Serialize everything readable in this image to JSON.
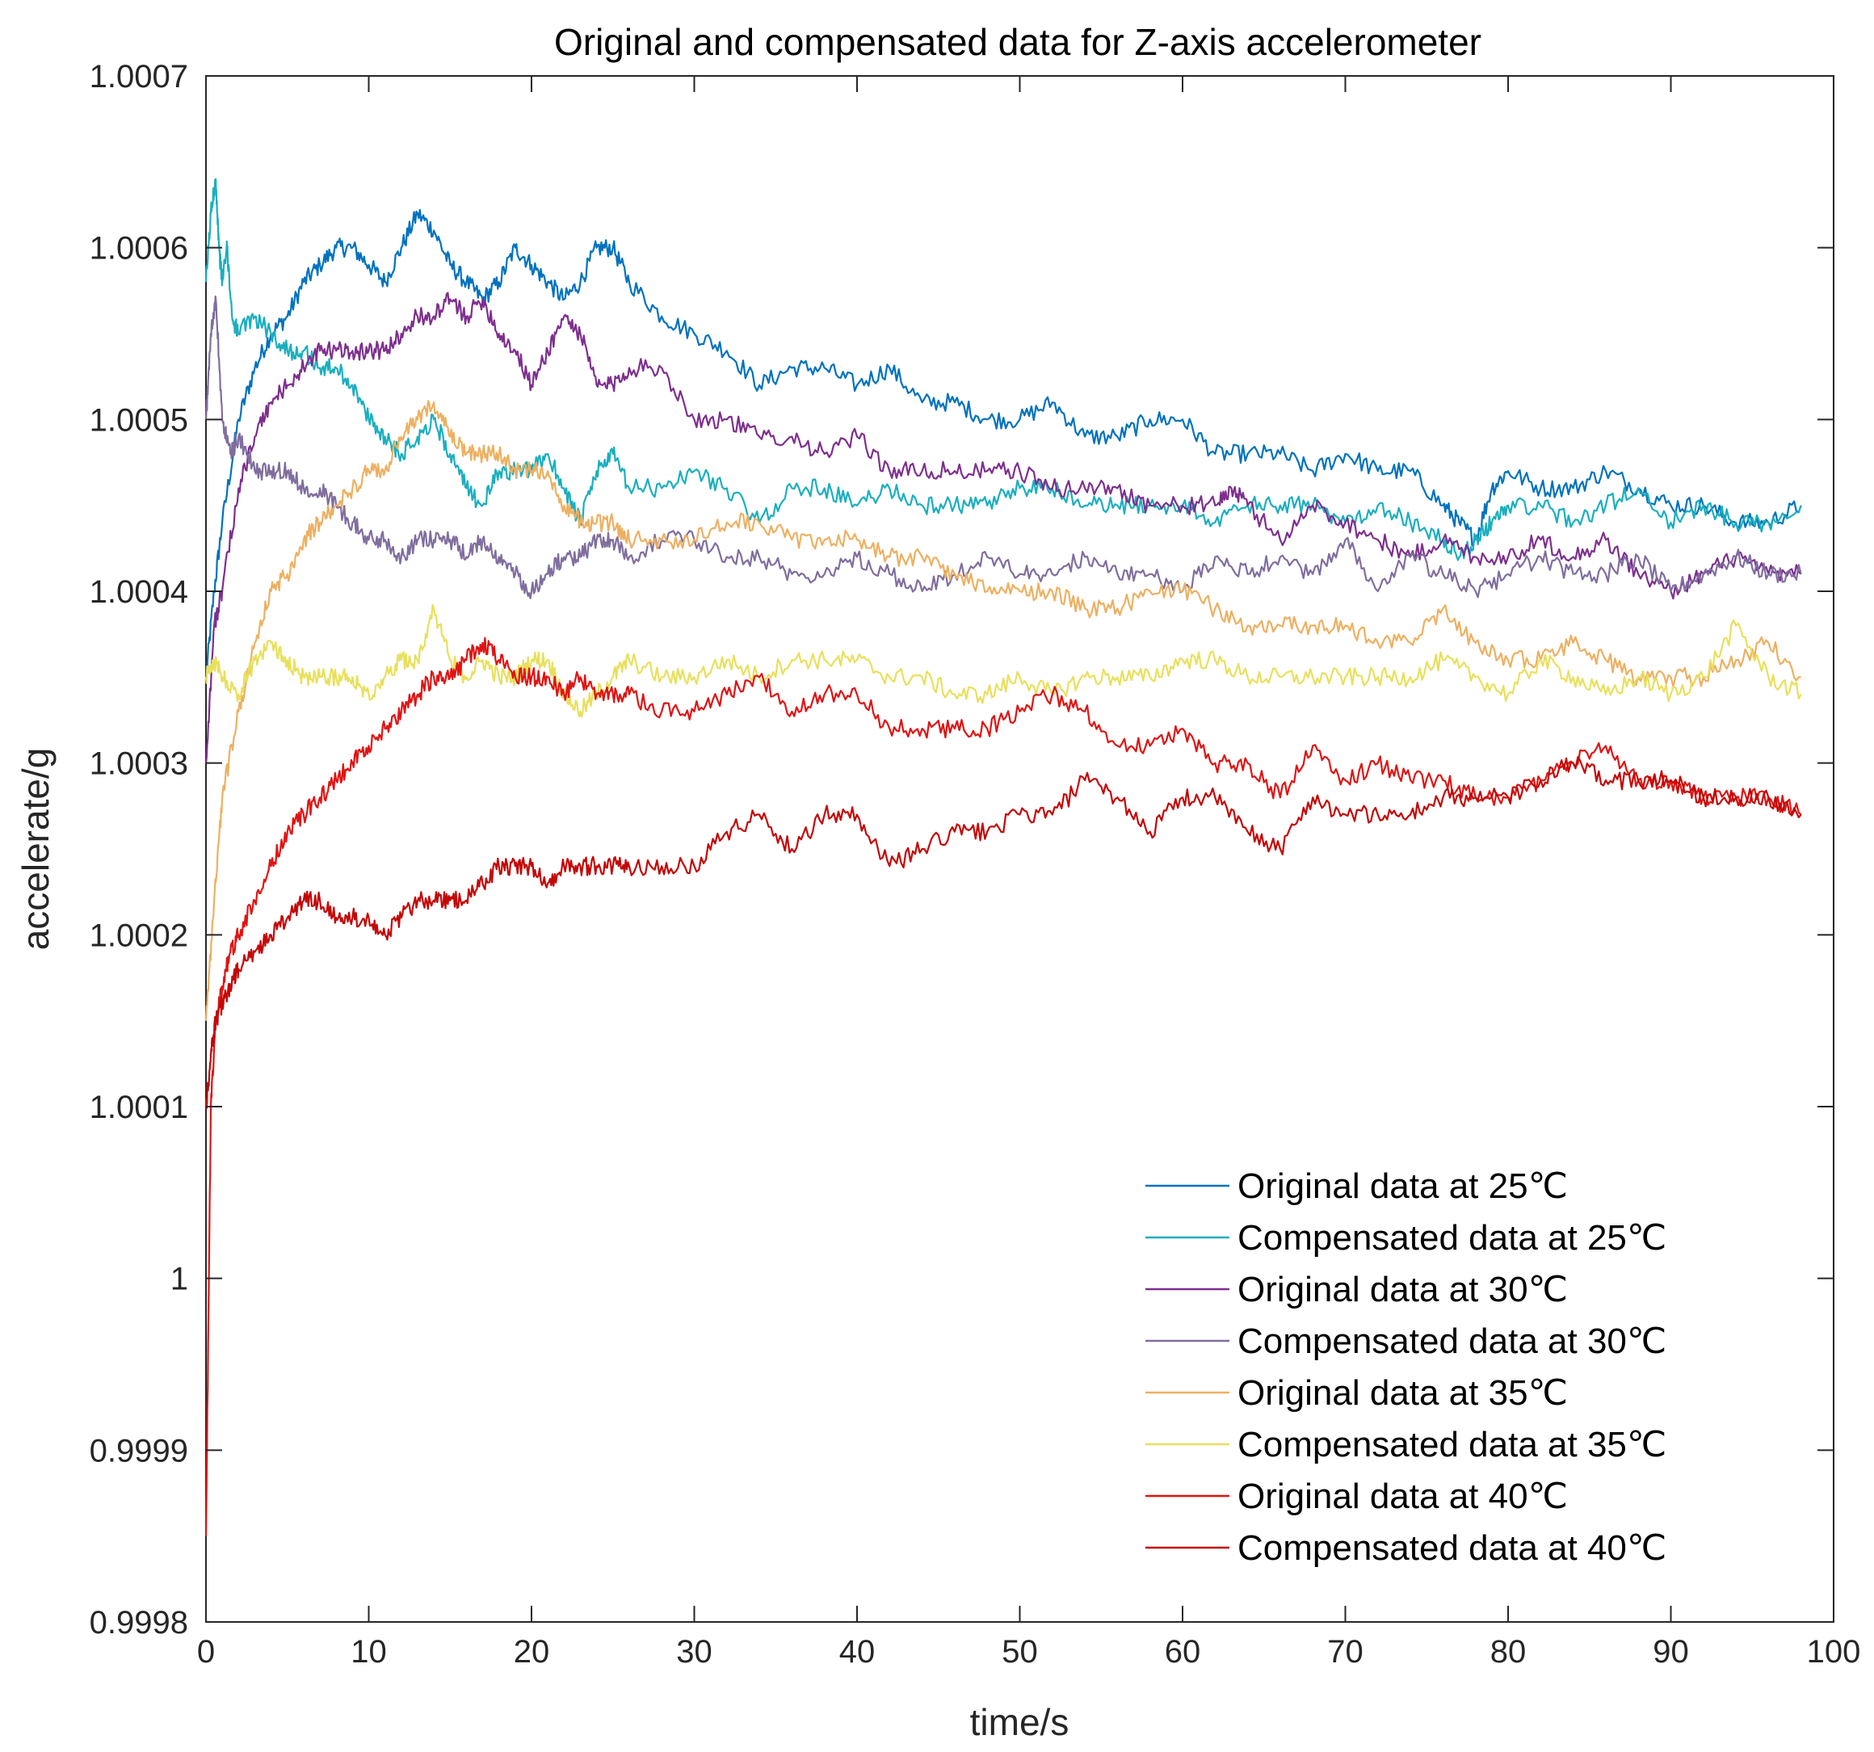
{
  "chart_data": {
    "type": "line",
    "title": "Original and compensated data for Z-axis accelerometer",
    "xlabel": "time/s",
    "ylabel": "accelerate/g",
    "xlim": [
      0,
      100
    ],
    "ylim": [
      0.9998,
      1.0007
    ],
    "xticks": [
      0,
      10,
      20,
      30,
      40,
      50,
      60,
      70,
      80,
      90,
      100
    ],
    "xtick_labels": [
      "0",
      "10",
      "20",
      "30",
      "40",
      "50",
      "60",
      "70",
      "80",
      "90",
      "100"
    ],
    "yticks": [
      0.9998,
      0.9999,
      1.0,
      1.0001,
      1.0002,
      1.0003,
      1.0004,
      1.0005,
      1.0006,
      1.0007
    ],
    "ytick_labels": [
      "0.9998",
      "0.9999",
      "1",
      "1.0001",
      "1.0002",
      "1.0003",
      "1.0004",
      "1.0005",
      "1.0006",
      "1.0007"
    ],
    "grid": false,
    "legend_position": "bottom-right",
    "series": [
      {
        "name": "Original data at 25℃",
        "color": "#0072BD",
        "x": [
          0,
          0.5,
          1,
          2,
          3,
          4,
          5,
          6,
          7,
          8,
          9,
          10,
          11,
          12,
          13,
          14,
          15,
          16,
          17,
          18,
          19,
          20,
          21,
          22,
          23,
          24,
          25,
          26,
          28,
          30,
          32,
          34,
          36,
          38,
          40,
          42,
          44,
          46,
          48,
          50,
          52,
          54,
          56,
          58,
          60,
          62,
          64,
          66,
          68,
          70,
          72,
          74,
          76,
          77,
          78,
          79,
          80,
          82,
          84,
          86,
          88,
          90,
          92,
          94,
          96,
          98
        ],
        "values": [
          1.00035,
          1.0004,
          1.00044,
          1.0005,
          1.00053,
          1.00055,
          1.00056,
          1.00058,
          1.00059,
          1.0006,
          1.0006,
          1.00059,
          1.00058,
          1.0006,
          1.00062,
          1.00061,
          1.00059,
          1.00058,
          1.00057,
          1.00058,
          1.0006,
          1.00059,
          1.00058,
          1.00057,
          1.00058,
          1.0006,
          1.0006,
          1.00058,
          1.00056,
          1.00055,
          1.00054,
          1.00052,
          1.00053,
          1.00053,
          1.00052,
          1.00053,
          1.00051,
          1.00051,
          1.0005,
          1.0005,
          1.00051,
          1.00049,
          1.00049,
          1.0005,
          1.0005,
          1.00048,
          1.00048,
          1.00048,
          1.00047,
          1.00048,
          1.00047,
          1.00047,
          1.00045,
          1.00044,
          1.00043,
          1.00046,
          1.00047,
          1.00046,
          1.00046,
          1.00047,
          1.00046,
          1.00045,
          1.00045,
          1.00044,
          1.00044,
          1.00045
        ]
      },
      {
        "name": "Compensated data at 25℃",
        "color": "#1AAFBF",
        "x": [
          0,
          0.3,
          0.6,
          0.8,
          1,
          1.3,
          1.6,
          2,
          3,
          4,
          5,
          6,
          7,
          8,
          9,
          10,
          11,
          12,
          13,
          14,
          15,
          16,
          17,
          18,
          19,
          20,
          21,
          22,
          23,
          24,
          25,
          26,
          28,
          30,
          32,
          34,
          36,
          38,
          40,
          42,
          44,
          46,
          48,
          50,
          52,
          54,
          56,
          58,
          60,
          62,
          64,
          66,
          68,
          70,
          72,
          74,
          76,
          77,
          78,
          79,
          80,
          82,
          84,
          86,
          88,
          90,
          92,
          94,
          96,
          98
        ],
        "values": [
          1.00058,
          1.00062,
          1.00064,
          1.0006,
          1.00058,
          1.0006,
          1.00056,
          1.00055,
          1.00056,
          1.00055,
          1.00054,
          1.00054,
          1.00053,
          1.00053,
          1.00052,
          1.0005,
          1.00049,
          1.00048,
          1.00049,
          1.0005,
          1.00048,
          1.00046,
          1.00045,
          1.00047,
          1.00047,
          1.00047,
          1.00048,
          1.00046,
          1.00044,
          1.00047,
          1.00048,
          1.00046,
          1.00046,
          1.00047,
          1.00046,
          1.00044,
          1.00046,
          1.00046,
          1.00045,
          1.00046,
          1.00045,
          1.00045,
          1.00045,
          1.00046,
          1.00046,
          1.00045,
          1.00045,
          1.00045,
          1.00045,
          1.00044,
          1.00045,
          1.00045,
          1.00045,
          1.00044,
          1.00045,
          1.00044,
          1.00043,
          1.00042,
          1.00043,
          1.00044,
          1.00045,
          1.00045,
          1.00044,
          1.00045,
          1.00046,
          1.00044,
          1.00045,
          1.00044,
          1.00044,
          1.00045
        ]
      },
      {
        "name": "Original data at 30℃",
        "color": "#7E2F8E",
        "x": [
          0,
          0.5,
          1,
          2,
          3,
          4,
          5,
          6,
          7,
          8,
          9,
          10,
          11,
          12,
          13,
          14,
          15,
          16,
          17,
          18,
          19,
          20,
          21,
          22,
          23,
          24,
          25,
          26,
          28,
          30,
          32,
          34,
          36,
          38,
          40,
          42,
          44,
          46,
          48,
          50,
          52,
          54,
          56,
          58,
          60,
          62,
          63,
          64,
          66,
          68,
          70,
          72,
          74,
          76,
          78,
          80,
          82,
          84,
          86,
          88,
          90,
          92,
          94,
          96,
          98
        ],
        "values": [
          1.0003,
          1.00038,
          1.0004,
          1.00046,
          1.00049,
          1.00051,
          1.00052,
          1.00053,
          1.00054,
          1.00054,
          1.00054,
          1.00054,
          1.00054,
          1.00055,
          1.00056,
          1.00056,
          1.00057,
          1.00056,
          1.00057,
          1.00055,
          1.00054,
          1.00052,
          1.00054,
          1.00056,
          1.00055,
          1.00052,
          1.00052,
          1.00053,
          1.00053,
          1.0005,
          1.0005,
          1.00049,
          1.00049,
          1.00048,
          1.00049,
          1.00047,
          1.00047,
          1.00047,
          1.00047,
          1.00047,
          1.00046,
          1.00046,
          1.00046,
          1.00045,
          1.00045,
          1.00045,
          1.00046,
          1.00045,
          1.00043,
          1.00045,
          1.00044,
          1.00043,
          1.00042,
          1.00043,
          1.00042,
          1.00042,
          1.00043,
          1.00042,
          1.00043,
          1.00041,
          1.0004,
          1.00041,
          1.00042,
          1.00041,
          1.00041
        ]
      },
      {
        "name": "Compensated data at 30℃",
        "color": "#7F6E9E",
        "x": [
          0,
          0.3,
          0.6,
          1,
          1.5,
          2,
          3,
          4,
          5,
          6,
          7,
          8,
          9,
          10,
          11,
          12,
          13,
          14,
          15,
          16,
          17,
          18,
          19,
          20,
          21,
          22,
          23,
          24,
          25,
          26,
          28,
          30,
          32,
          34,
          36,
          38,
          40,
          42,
          44,
          46,
          48,
          50,
          52,
          54,
          56,
          58,
          60,
          62,
          64,
          66,
          68,
          70,
          72,
          74,
          76,
          78,
          80,
          82,
          84,
          86,
          88,
          90,
          92,
          94,
          96,
          98
        ],
        "values": [
          1.0005,
          1.00055,
          1.00057,
          1.0005,
          1.00048,
          1.00049,
          1.00047,
          1.00047,
          1.00047,
          1.00046,
          1.00046,
          1.00045,
          1.00044,
          1.00043,
          1.00043,
          1.00042,
          1.00043,
          1.00043,
          1.00043,
          1.00042,
          1.00043,
          1.00042,
          1.00041,
          1.0004,
          1.00041,
          1.00042,
          1.00042,
          1.00043,
          1.00043,
          1.00042,
          1.00043,
          1.00043,
          1.00042,
          1.00042,
          1.00041,
          1.00041,
          1.00042,
          1.00041,
          1.0004,
          1.00041,
          1.00042,
          1.00041,
          1.00041,
          1.00042,
          1.00041,
          1.00041,
          1.0004,
          1.00042,
          1.00041,
          1.00042,
          1.00041,
          1.00043,
          1.0004,
          1.00042,
          1.00041,
          1.0004,
          1.00041,
          1.00042,
          1.00041,
          1.00041,
          1.00042,
          1.0004,
          1.00041,
          1.00042,
          1.00041,
          1.00041
        ]
      },
      {
        "name": "Original data at 35℃",
        "color": "#EDB061",
        "x": [
          0,
          0.5,
          1,
          2,
          3,
          4,
          5,
          6,
          7,
          8,
          9,
          10,
          11,
          12,
          13,
          14,
          15,
          16,
          17,
          18,
          19,
          20,
          21,
          22,
          23,
          24,
          25,
          26,
          28,
          30,
          32,
          34,
          36,
          38,
          40,
          42,
          44,
          46,
          48,
          50,
          52,
          54,
          56,
          58,
          60,
          62,
          64,
          66,
          68,
          70,
          72,
          74,
          76,
          78,
          80,
          82,
          84,
          86,
          88,
          90,
          92,
          94,
          96,
          98
        ],
        "values": [
          1.00015,
          1.00022,
          1.00028,
          1.00033,
          1.00037,
          1.0004,
          1.00041,
          1.00043,
          1.00044,
          1.00045,
          1.00046,
          1.00047,
          1.00047,
          1.00049,
          1.0005,
          1.00051,
          1.00049,
          1.00048,
          1.00048,
          1.00048,
          1.00047,
          1.00047,
          1.00047,
          1.00045,
          1.00044,
          1.00044,
          1.00044,
          1.00043,
          1.00043,
          1.00043,
          1.00044,
          1.00044,
          1.00043,
          1.00043,
          1.00043,
          1.00042,
          1.00042,
          1.00041,
          1.0004,
          1.0004,
          1.0004,
          1.00039,
          1.00039,
          1.0004,
          1.0004,
          1.00039,
          1.00038,
          1.00038,
          1.00038,
          1.00038,
          1.00037,
          1.00037,
          1.00039,
          1.00037,
          1.00036,
          1.00036,
          1.00037,
          1.00036,
          1.00035,
          1.00035,
          1.00035,
          1.00036,
          1.00037,
          1.00035
        ]
      },
      {
        "name": "Compensated data at 35℃",
        "color": "#E8E05C",
        "x": [
          0,
          0.5,
          1,
          2,
          3,
          4,
          5,
          6,
          7,
          8,
          9,
          10,
          11,
          12,
          13,
          14,
          15,
          16,
          17,
          18,
          19,
          20,
          21,
          22,
          23,
          24,
          25,
          26,
          28,
          30,
          32,
          34,
          36,
          38,
          40,
          42,
          44,
          46,
          48,
          50,
          52,
          54,
          56,
          58,
          60,
          62,
          64,
          66,
          68,
          70,
          72,
          74,
          76,
          78,
          80,
          82,
          84,
          86,
          88,
          90,
          92,
          94,
          96,
          98
        ],
        "values": [
          1.00035,
          1.00036,
          1.00035,
          1.00034,
          1.00036,
          1.00037,
          1.00036,
          1.00035,
          1.00035,
          1.00035,
          1.00035,
          1.00034,
          1.00035,
          1.00036,
          1.00036,
          1.00039,
          1.00036,
          1.00035,
          1.00036,
          1.00035,
          1.00035,
          1.00036,
          1.00036,
          1.00034,
          1.00033,
          1.00034,
          1.00035,
          1.00036,
          1.00035,
          1.00035,
          1.00036,
          1.00035,
          1.00036,
          1.00036,
          1.00036,
          1.00035,
          1.00035,
          1.00034,
          1.00034,
          1.00035,
          1.00034,
          1.00035,
          1.00035,
          1.00035,
          1.00036,
          1.00036,
          1.00035,
          1.00035,
          1.00035,
          1.00035,
          1.00035,
          1.00035,
          1.00036,
          1.00035,
          1.00034,
          1.00036,
          1.00035,
          1.00034,
          1.00035,
          1.00034,
          1.00035,
          1.00038,
          1.00035,
          1.00034
        ]
      },
      {
        "name": "Original data at 40℃",
        "color": "#E01414",
        "x": [
          0,
          0.3,
          0.6,
          1,
          1.5,
          2,
          3,
          4,
          5,
          6,
          7,
          8,
          9,
          10,
          11,
          12,
          13,
          14,
          15,
          16,
          17,
          18,
          19,
          20,
          21,
          22,
          23,
          24,
          25,
          26,
          28,
          30,
          32,
          34,
          36,
          38,
          40,
          42,
          44,
          46,
          48,
          50,
          52,
          54,
          56,
          58,
          60,
          62,
          64,
          66,
          68,
          70,
          72,
          74,
          76,
          78,
          80,
          82,
          84,
          86,
          88,
          90,
          92,
          94,
          96,
          98
        ],
        "values": [
          0.99985,
          1.0001,
          1.00015,
          1.00017,
          1.00019,
          1.0002,
          1.00022,
          1.00024,
          1.00026,
          1.00027,
          1.00028,
          1.00029,
          1.0003,
          1.00031,
          1.00032,
          1.00033,
          1.00034,
          1.00035,
          1.00035,
          1.00036,
          1.00037,
          1.00036,
          1.00035,
          1.00035,
          1.00035,
          1.00034,
          1.00035,
          1.00034,
          1.00034,
          1.00034,
          1.00033,
          1.00033,
          1.00034,
          1.00035,
          1.00033,
          1.00034,
          1.00034,
          1.00032,
          1.00032,
          1.00032,
          1.00032,
          1.00033,
          1.00034,
          1.00033,
          1.00031,
          1.00031,
          1.00032,
          1.0003,
          1.0003,
          1.00028,
          1.00031,
          1.00029,
          1.0003,
          1.00029,
          1.00029,
          1.00028,
          1.00028,
          1.00029,
          1.0003,
          1.00031,
          1.00029,
          1.00029,
          1.00028,
          1.00028,
          1.00028,
          1.00027
        ]
      },
      {
        "name": "Compensated data at 40℃",
        "color": "#C40808",
        "x": [
          0,
          0.3,
          0.6,
          1,
          1.5,
          2,
          3,
          4,
          5,
          6,
          7,
          8,
          9,
          10,
          11,
          12,
          13,
          14,
          15,
          16,
          17,
          18,
          19,
          20,
          21,
          22,
          23,
          24,
          25,
          26,
          28,
          30,
          32,
          34,
          36,
          38,
          40,
          42,
          44,
          46,
          48,
          50,
          52,
          54,
          56,
          58,
          60,
          62,
          64,
          66,
          68,
          70,
          72,
          74,
          76,
          78,
          80,
          82,
          84,
          86,
          88,
          90,
          92,
          94,
          96,
          98
        ],
        "values": [
          1.0001,
          1.00013,
          1.00015,
          1.00016,
          1.00017,
          1.00018,
          1.00019,
          1.0002,
          1.00021,
          1.00022,
          1.00022,
          1.00021,
          1.00021,
          1.00021,
          1.0002,
          1.00021,
          1.00022,
          1.00022,
          1.00022,
          1.00022,
          1.00023,
          1.00024,
          1.00024,
          1.00024,
          1.00023,
          1.00024,
          1.00024,
          1.00024,
          1.00024,
          1.00024,
          1.00024,
          1.00024,
          1.00026,
          1.00027,
          1.00025,
          1.00027,
          1.00027,
          1.00024,
          1.00025,
          1.00026,
          1.00026,
          1.00027,
          1.00027,
          1.00029,
          1.00028,
          1.00026,
          1.00028,
          1.00028,
          1.00026,
          1.00025,
          1.00028,
          1.00027,
          1.00027,
          1.00027,
          1.00028,
          1.00028,
          1.00028,
          1.00029,
          1.0003,
          1.00029,
          1.00029,
          1.00029,
          1.00028,
          1.00028,
          1.00028,
          1.00027
        ]
      }
    ]
  }
}
